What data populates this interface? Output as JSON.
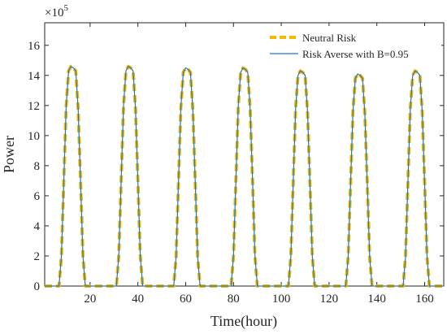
{
  "chart_data": {
    "type": "line",
    "title": "",
    "xlabel": "Time(hour)",
    "ylabel": "Power",
    "y_multiplier_label": "×10",
    "y_multiplier_exponent": "5",
    "xlim": [
      1,
      168
    ],
    "ylim": [
      0,
      17.5
    ],
    "xticks": [
      20,
      40,
      60,
      80,
      100,
      120,
      140,
      160
    ],
    "yticks": [
      0,
      2,
      4,
      6,
      8,
      10,
      12,
      14,
      16
    ],
    "grid": false,
    "legend_position": "top-right",
    "daily_profile": [
      0,
      0,
      0,
      0,
      0,
      0,
      0,
      2,
      7,
      12,
      14.3,
      14.6,
      14.5,
      14.3,
      11.8,
      7,
      2,
      0,
      0,
      0,
      0,
      0,
      0,
      0
    ],
    "series": [
      {
        "name": "Neutral Risk",
        "color": "#f5b800",
        "style": "dashed",
        "peaks": [
          14.6,
          14.6,
          14.5,
          14.5,
          14.3,
          14.1,
          14.3
        ]
      },
      {
        "name": "Risk Averse with B=0.95",
        "color": "#1f77c4",
        "style": "solid",
        "peaks": [
          14.6,
          14.6,
          14.5,
          14.5,
          14.3,
          14.1,
          14.3
        ]
      }
    ]
  }
}
